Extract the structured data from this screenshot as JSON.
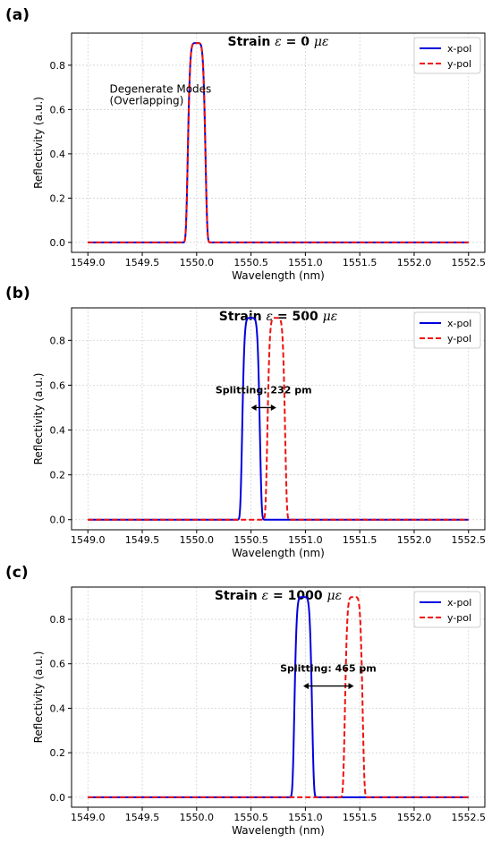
{
  "chart_data": [
    {
      "panel_label": "(a)",
      "type": "line",
      "title_prefix": "Strain ",
      "title_symbol": "ε",
      "title_value": " = 0 ",
      "title_unit": "με",
      "xlabel": "Wavelength (nm)",
      "ylabel": "Reflectivity (a.u.)",
      "xlim": [
        1548.85,
        1552.65
      ],
      "ylim": [
        -0.045,
        0.945
      ],
      "xticks": [
        "1549.0",
        "1549.5",
        "1550.0",
        "1550.5",
        "1551.0",
        "1551.5",
        "1552.0",
        "1552.5"
      ],
      "yticks": [
        "0.0",
        "0.2",
        "0.4",
        "0.6",
        "0.8"
      ],
      "grid": true,
      "legend_position": "top-right",
      "series": [
        {
          "name": "x-pol",
          "color": "#0000dd",
          "style": "solid",
          "peak_center": 1550.0,
          "peak": 0.9
        },
        {
          "name": "y-pol",
          "color": "#ee1111",
          "style": "dashed",
          "peak_center": 1550.0,
          "peak": 0.9
        }
      ],
      "annotation": {
        "lines": [
          "Degenerate Modes",
          "(Overlapping)"
        ],
        "x": 1549.2,
        "y": 0.62,
        "arrow": null
      }
    },
    {
      "panel_label": "(b)",
      "type": "line",
      "title_prefix": "Strain ",
      "title_symbol": "ε",
      "title_value": " = 500 ",
      "title_unit": "με",
      "xlabel": "Wavelength (nm)",
      "ylabel": "Reflectivity (a.u.)",
      "xlim": [
        1548.85,
        1552.65
      ],
      "ylim": [
        -0.045,
        0.945
      ],
      "xticks": [
        "1549.0",
        "1549.5",
        "1550.0",
        "1550.5",
        "1551.0",
        "1551.5",
        "1552.0",
        "1552.5"
      ],
      "yticks": [
        "0.0",
        "0.2",
        "0.4",
        "0.6",
        "0.8"
      ],
      "grid": true,
      "legend_position": "top-right",
      "series": [
        {
          "name": "x-pol",
          "color": "#0000dd",
          "style": "solid",
          "peak_center": 1550.5,
          "peak": 0.9
        },
        {
          "name": "y-pol",
          "color": "#ee1111",
          "style": "dashed",
          "peak_center": 1550.732,
          "peak": 0.9
        }
      ],
      "annotation": {
        "lines": [
          "Splitting: 232 pm"
        ],
        "x": 1550.616,
        "y": 0.58,
        "arrow": [
          1550.5,
          1550.732,
          0.5
        ]
      }
    },
    {
      "panel_label": "(c)",
      "type": "line",
      "title_prefix": "Strain ",
      "title_symbol": "ε",
      "title_value": " = 1000 ",
      "title_unit": "με",
      "xlabel": "Wavelength (nm)",
      "ylabel": "Reflectivity (a.u.)",
      "xlim": [
        1548.85,
        1552.65
      ],
      "ylim": [
        -0.045,
        0.945
      ],
      "xticks": [
        "1549.0",
        "1549.5",
        "1550.0",
        "1550.5",
        "1551.0",
        "1551.5",
        "1552.0",
        "1552.5"
      ],
      "yticks": [
        "0.0",
        "0.2",
        "0.4",
        "0.6",
        "0.8"
      ],
      "grid": true,
      "legend_position": "top-right",
      "series": [
        {
          "name": "x-pol",
          "color": "#0000dd",
          "style": "solid",
          "peak_center": 1550.98,
          "peak": 0.9
        },
        {
          "name": "y-pol",
          "color": "#ee1111",
          "style": "dashed",
          "peak_center": 1551.445,
          "peak": 0.9
        }
      ],
      "annotation": {
        "lines": [
          "Splitting: 465 pm"
        ],
        "x": 1551.21,
        "y": 0.58,
        "arrow": [
          1550.98,
          1551.445,
          0.5
        ]
      }
    }
  ]
}
